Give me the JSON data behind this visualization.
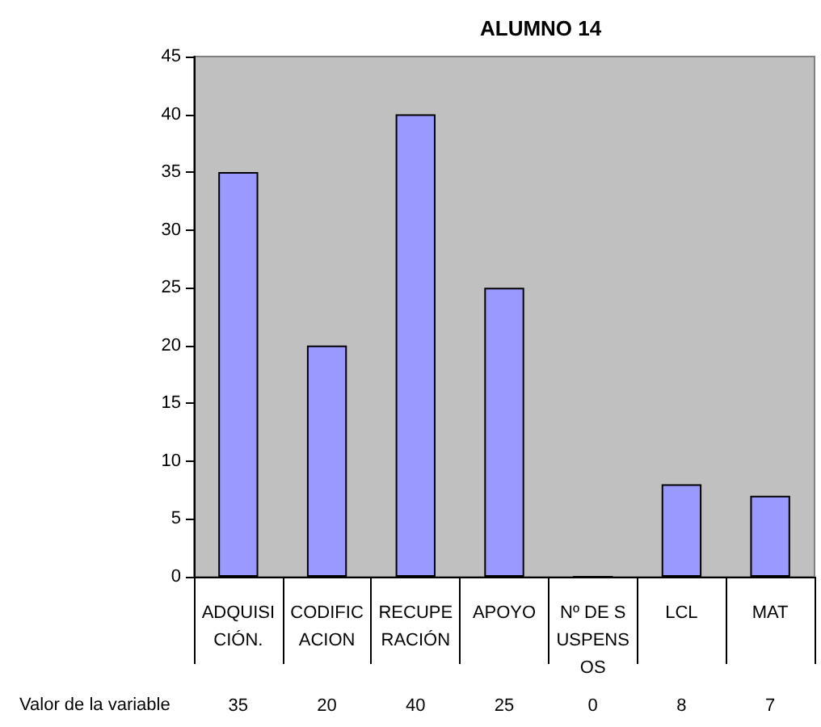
{
  "chart_data": {
    "type": "bar",
    "title": "ALUMNO 14",
    "categories": [
      "ADQUISICIÓN.",
      "CODIFICACION",
      "RECUPERACIÓN",
      "APOYO",
      "Nº DE SUSPENSOS",
      "LCL",
      "MAT"
    ],
    "series": [
      {
        "name": "Valor de la variable",
        "color": "#9999ff",
        "values": [
          35,
          20,
          40,
          25,
          0,
          8,
          7
        ]
      }
    ],
    "ylim": [
      0,
      45
    ],
    "yticks": [
      0,
      5,
      10,
      15,
      20,
      25,
      30,
      35,
      40,
      45
    ],
    "grid": false,
    "data_labels": true
  }
}
